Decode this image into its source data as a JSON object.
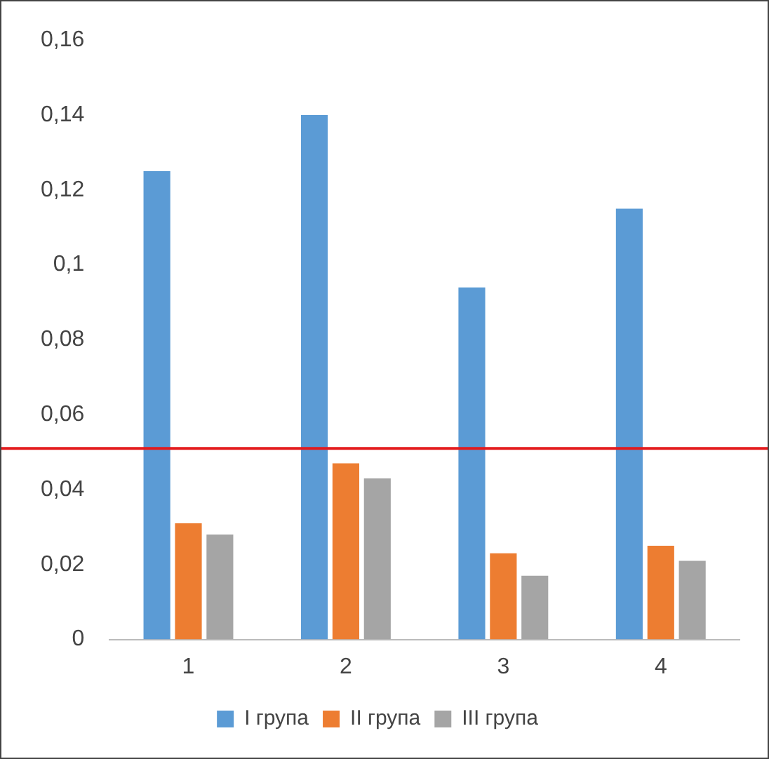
{
  "chart_data": {
    "type": "bar",
    "categories": [
      "1",
      "2",
      "3",
      "4"
    ],
    "series": [
      {
        "name": "I група",
        "color": "#5b9bd5",
        "values": [
          0.125,
          0.14,
          0.094,
          0.115
        ]
      },
      {
        "name": "II група",
        "color": "#ed7d31",
        "values": [
          0.031,
          0.047,
          0.023,
          0.025
        ]
      },
      {
        "name": "III група",
        "color": "#a5a5a5",
        "values": [
          0.028,
          0.043,
          0.017,
          0.021
        ]
      }
    ],
    "ylim": [
      0,
      0.16
    ],
    "yticks": [
      {
        "value": 0,
        "label": "0"
      },
      {
        "value": 0.02,
        "label": "0,02"
      },
      {
        "value": 0.04,
        "label": "0,04"
      },
      {
        "value": 0.06,
        "label": "0,06"
      },
      {
        "value": 0.08,
        "label": "0,08"
      },
      {
        "value": 0.1,
        "label": "0,1"
      },
      {
        "value": 0.12,
        "label": "0,12"
      },
      {
        "value": 0.14,
        "label": "0,14"
      },
      {
        "value": 0.16,
        "label": "0,16"
      }
    ],
    "ref_lines": [
      {
        "axis": "y",
        "value": 0.051,
        "color": "#e31a1c"
      }
    ],
    "grid": false,
    "legend": "bottom"
  }
}
